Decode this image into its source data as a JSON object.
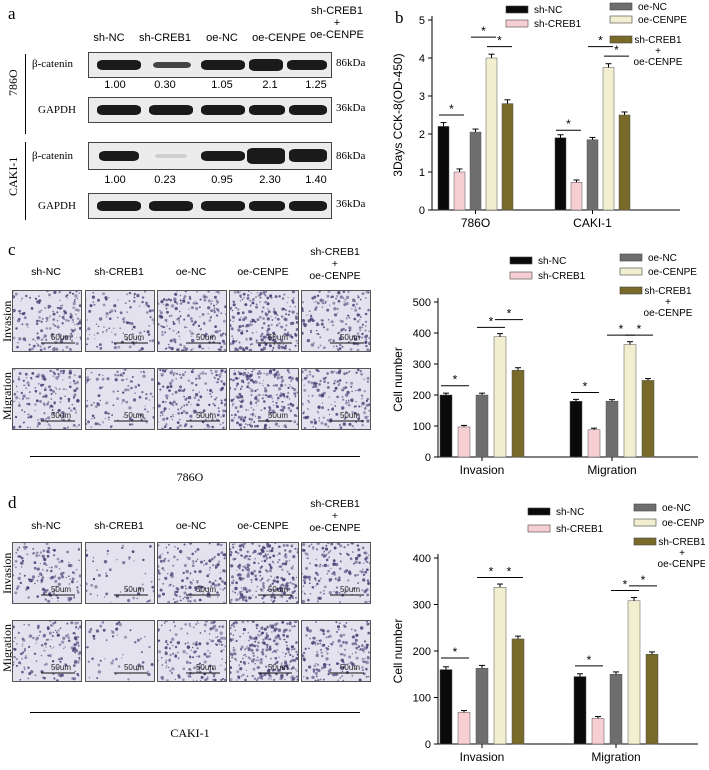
{
  "panel_letters": {
    "a": "a",
    "b": "b",
    "c": "c",
    "d": "d"
  },
  "blot": {
    "lanes": [
      "sh-NC",
      "sh-CREB1",
      "oe-NC",
      "oe-CENPE",
      "sh-CREB1\n+\noe-CENPE"
    ],
    "cell_lines": [
      "786O",
      "CAKI-1"
    ],
    "rows": {
      "beta": "β-catenin",
      "gapdh": "GAPDH"
    },
    "kda": {
      "beta": "86kDa",
      "gapdh": "36kDa"
    },
    "quant_786O": [
      "1.00",
      "0.30",
      "1.05",
      "2.1",
      "1.25"
    ],
    "quant_CAKI1": [
      "1.00",
      "0.23",
      "0.95",
      "2.30",
      "1.40"
    ]
  },
  "micro_c": {
    "headers": [
      "sh-NC",
      "sh-CREB1",
      "oe-NC",
      "oe-CENPE",
      "sh-CREB1\n+\noe-CENPE"
    ],
    "rows": [
      "Invasion",
      "Migration"
    ],
    "scale": "50um",
    "cell_line": "786O"
  },
  "micro_d": {
    "headers": [
      "sh-NC",
      "sh-CREB1",
      "oe-NC",
      "oe-CENPE",
      "sh-CREB1\n+\noe-CENPE"
    ],
    "rows": [
      "Invasion",
      "Migration"
    ],
    "scale": "50um",
    "cell_line": "CAKI-1"
  },
  "colors": {
    "sh-NC": "#0a0a0a",
    "sh-CREB1": "#f7cfd2",
    "oe-NC": "#6e6e6e",
    "oe-CENPE": "#f1efcf",
    "sh-CREB1 + oe-CENPE": "#7a6a2a"
  },
  "chart_data": [
    {
      "type": "bar",
      "panel": "b",
      "categories": [
        "786O",
        "CAKI-1"
      ],
      "series": [
        {
          "name": "sh-NC",
          "values": [
            2.2,
            1.9
          ],
          "errors": [
            0.1,
            0.08
          ]
        },
        {
          "name": "sh-CREB1",
          "values": [
            1.0,
            0.73
          ],
          "errors": [
            0.08,
            0.06
          ]
        },
        {
          "name": "oe-NC",
          "values": [
            2.05,
            1.85
          ],
          "errors": [
            0.08,
            0.06
          ]
        },
        {
          "name": "oe-CENPE",
          "values": [
            4.0,
            3.75
          ],
          "errors": [
            0.1,
            0.1
          ]
        },
        {
          "name": "sh-CREB1 + oe-CENPE",
          "values": [
            2.8,
            2.5
          ],
          "errors": [
            0.1,
            0.08
          ]
        }
      ],
      "sig": [
        {
          "cat": 0,
          "from": 0,
          "to": 1,
          "y": 2.5
        },
        {
          "cat": 0,
          "from": 3,
          "to": 4,
          "y": 4.3
        },
        {
          "cat": 0,
          "from": 2,
          "to": 3,
          "y": 4.55
        },
        {
          "cat": 1,
          "from": 0,
          "to": 1,
          "y": 2.1
        },
        {
          "cat": 1,
          "from": 3,
          "to": 4,
          "y": 4.05
        },
        {
          "cat": 1,
          "from": 2,
          "to": 3,
          "y": 4.3
        }
      ],
      "sig_label": "*",
      "ylabel": "3Days CCK-8(OD-450)",
      "ylim": [
        0,
        5
      ],
      "yticks": [
        0,
        1,
        2,
        3,
        4,
        5
      ],
      "legend": [
        "sh-NC",
        "sh-CREB1",
        "oe-NC",
        "oe-CENPE",
        "sh-CREB1\n+\noe-CENPE"
      ]
    },
    {
      "type": "bar",
      "panel": "c",
      "categories": [
        "Invasion",
        "Migration"
      ],
      "series": [
        {
          "name": "sh-NC",
          "values": [
            200,
            180
          ],
          "errors": [
            6,
            6
          ]
        },
        {
          "name": "sh-CREB1",
          "values": [
            97,
            88
          ],
          "errors": [
            5,
            5
          ]
        },
        {
          "name": "oe-NC",
          "values": [
            200,
            180
          ],
          "errors": [
            6,
            5
          ]
        },
        {
          "name": "oe-CENPE",
          "values": [
            388,
            363
          ],
          "errors": [
            10,
            9
          ]
        },
        {
          "name": "sh-CREB1 + oe-CENPE",
          "values": [
            280,
            247
          ],
          "errors": [
            8,
            6
          ]
        }
      ],
      "sig": [
        {
          "cat": 0,
          "from": 0,
          "to": 1,
          "y": 230
        },
        {
          "cat": 0,
          "from": 2,
          "to": 3,
          "y": 418
        },
        {
          "cat": 0,
          "from": 3,
          "to": 4,
          "y": 443
        },
        {
          "cat": 1,
          "from": 0,
          "to": 1,
          "y": 208
        },
        {
          "cat": 1,
          "from": 2,
          "to": 3,
          "y": 393
        },
        {
          "cat": 1,
          "from": 3,
          "to": 4,
          "y": 393
        }
      ],
      "sig_label": "*",
      "ylabel": "Cell number",
      "ylim": [
        0,
        500
      ],
      "yticks": [
        0,
        100,
        200,
        300,
        400,
        500
      ],
      "legend": [
        "sh-NC",
        "sh-CREB1",
        "oe-NC",
        "oe-CENPE",
        "sh-CREB1\n+\noe-CENPE"
      ]
    },
    {
      "type": "bar",
      "panel": "d",
      "categories": [
        "Invasion",
        "Migration"
      ],
      "series": [
        {
          "name": "sh-NC",
          "values": [
            160,
            145
          ],
          "errors": [
            6,
            6
          ]
        },
        {
          "name": "sh-CREB1",
          "values": [
            68,
            55
          ],
          "errors": [
            4,
            4
          ]
        },
        {
          "name": "oe-NC",
          "values": [
            163,
            150
          ],
          "errors": [
            6,
            5
          ]
        },
        {
          "name": "oe-CENPE",
          "values": [
            337,
            308
          ],
          "errors": [
            7,
            7
          ]
        },
        {
          "name": "sh-CREB1 + oe-CENPE",
          "values": [
            226,
            193
          ],
          "errors": [
            6,
            5
          ]
        }
      ],
      "sig": [
        {
          "cat": 0,
          "from": 0,
          "to": 1,
          "y": 185
        },
        {
          "cat": 0,
          "from": 2,
          "to": 3,
          "y": 358
        },
        {
          "cat": 0,
          "from": 3,
          "to": 4,
          "y": 358
        },
        {
          "cat": 1,
          "from": 0,
          "to": 1,
          "y": 168
        },
        {
          "cat": 1,
          "from": 2,
          "to": 3,
          "y": 330
        },
        {
          "cat": 1,
          "from": 3,
          "to": 4,
          "y": 340
        }
      ],
      "sig_label": "*",
      "ylabel": "Cell number",
      "ylim": [
        0,
        400
      ],
      "yticks": [
        0,
        100,
        200,
        300,
        400
      ],
      "legend": [
        "sh-NC",
        "sh-CREB1",
        "oe-NC",
        "oe-CENPE",
        "sh-CREB1\n+\noe-CENPE"
      ]
    }
  ]
}
